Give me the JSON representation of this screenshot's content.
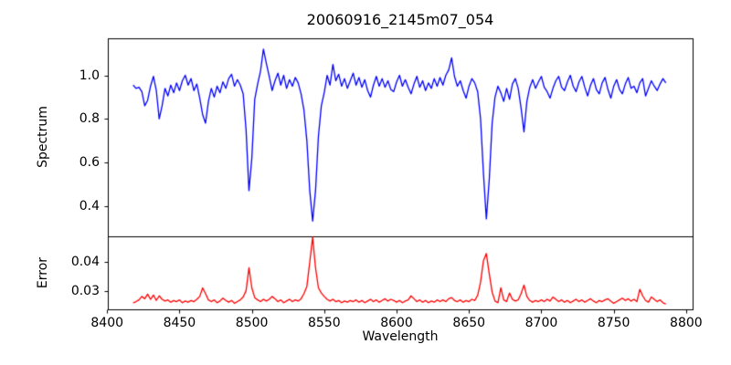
{
  "title": "20060916_2145m07_054",
  "xlabel": "Wavelength",
  "colors": {
    "background": "#ffffff",
    "axis": "#000000",
    "text": "#000000",
    "spectrum_line": "#0000ff",
    "error_line": "#ff0000"
  },
  "chart_data": {
    "type": "line",
    "title": "20060916_2145m07_054",
    "xlabel": "Wavelength",
    "grid": false,
    "legend": null,
    "xlim": [
      8400.5,
      8804.5
    ],
    "xticks": [
      "8400",
      "8450",
      "8500",
      "8550",
      "8600",
      "8650",
      "8700",
      "8750",
      "8800"
    ],
    "x": [
      8418,
      8420,
      8422,
      8424,
      8426,
      8428,
      8430,
      8432,
      8434,
      8436,
      8438,
      8440,
      8442,
      8444,
      8446,
      8448,
      8450,
      8452,
      8454,
      8456,
      8458,
      8460,
      8462,
      8464,
      8466,
      8468,
      8470,
      8472,
      8474,
      8476,
      8478,
      8480,
      8482,
      8484,
      8486,
      8488,
      8490,
      8492,
      8494,
      8496,
      8498,
      8500,
      8502,
      8504,
      8506,
      8508,
      8510,
      8512,
      8514,
      8516,
      8518,
      8520,
      8522,
      8524,
      8526,
      8528,
      8530,
      8532,
      8534,
      8536,
      8538,
      8540,
      8542,
      8544,
      8546,
      8548,
      8550,
      8552,
      8554,
      8556,
      8558,
      8560,
      8562,
      8564,
      8566,
      8568,
      8570,
      8572,
      8574,
      8576,
      8578,
      8580,
      8582,
      8584,
      8586,
      8588,
      8590,
      8592,
      8594,
      8596,
      8598,
      8600,
      8602,
      8604,
      8606,
      8608,
      8610,
      8612,
      8614,
      8616,
      8618,
      8620,
      8622,
      8624,
      8626,
      8628,
      8630,
      8632,
      8634,
      8636,
      8638,
      8640,
      8642,
      8644,
      8646,
      8648,
      8650,
      8652,
      8654,
      8656,
      8658,
      8660,
      8662,
      8664,
      8666,
      8668,
      8670,
      8672,
      8674,
      8676,
      8678,
      8680,
      8682,
      8684,
      8686,
      8688,
      8690,
      8692,
      8694,
      8696,
      8698,
      8700,
      8702,
      8704,
      8706,
      8708,
      8710,
      8712,
      8714,
      8716,
      8718,
      8720,
      8722,
      8724,
      8726,
      8728,
      8730,
      8732,
      8734,
      8736,
      8738,
      8740,
      8742,
      8744,
      8746,
      8748,
      8750,
      8752,
      8754,
      8756,
      8758,
      8760,
      8762,
      8764,
      8766,
      8768,
      8770,
      8772,
      8774,
      8776,
      8778,
      8780,
      8782,
      8784,
      8786
    ],
    "panels": [
      {
        "name": "spectrum",
        "ylabel": "Spectrum",
        "ylim": [
          0.26,
          1.17
        ],
        "yticks": [
          "0.4",
          "0.6",
          "0.8",
          "1.0"
        ],
        "line_color": "#0000ff",
        "values": [
          0.955,
          0.94,
          0.945,
          0.925,
          0.86,
          0.885,
          0.95,
          0.995,
          0.93,
          0.8,
          0.86,
          0.94,
          0.905,
          0.955,
          0.92,
          0.965,
          0.93,
          0.975,
          1.0,
          0.955,
          0.985,
          0.93,
          0.96,
          0.895,
          0.82,
          0.78,
          0.88,
          0.94,
          0.9,
          0.95,
          0.92,
          0.97,
          0.94,
          0.985,
          1.005,
          0.95,
          0.98,
          0.955,
          0.915,
          0.75,
          0.47,
          0.62,
          0.89,
          0.96,
          1.02,
          1.12,
          1.055,
          0.995,
          0.93,
          0.975,
          1.01,
          0.955,
          1.0,
          0.94,
          0.98,
          0.95,
          0.99,
          0.965,
          0.915,
          0.84,
          0.7,
          0.47,
          0.33,
          0.47,
          0.72,
          0.86,
          0.92,
          1.0,
          0.955,
          1.05,
          0.975,
          1.005,
          0.95,
          0.985,
          0.94,
          0.975,
          1.01,
          0.955,
          0.99,
          0.945,
          0.98,
          0.93,
          0.9,
          0.955,
          0.995,
          0.95,
          0.985,
          0.945,
          0.975,
          0.935,
          0.925,
          0.97,
          1.0,
          0.95,
          0.98,
          0.945,
          0.915,
          0.96,
          0.995,
          0.945,
          0.975,
          0.93,
          0.965,
          0.94,
          0.985,
          0.95,
          0.99,
          0.955,
          1.0,
          1.025,
          1.08,
          0.995,
          0.95,
          0.975,
          0.93,
          0.895,
          0.95,
          0.985,
          0.965,
          0.925,
          0.8,
          0.55,
          0.34,
          0.52,
          0.78,
          0.9,
          0.95,
          0.92,
          0.88,
          0.94,
          0.89,
          0.96,
          0.985,
          0.94,
          0.85,
          0.74,
          0.88,
          0.945,
          0.98,
          0.94,
          0.97,
          0.995,
          0.945,
          0.925,
          0.895,
          0.94,
          0.975,
          0.995,
          0.945,
          0.93,
          0.97,
          1.0,
          0.95,
          0.925,
          0.97,
          0.995,
          0.945,
          0.905,
          0.955,
          0.985,
          0.935,
          0.915,
          0.965,
          0.99,
          0.935,
          0.895,
          0.95,
          0.98,
          0.935,
          0.915,
          0.96,
          0.99,
          0.94,
          0.95,
          0.92,
          0.965,
          0.985,
          0.905,
          0.94,
          0.975,
          0.95,
          0.93,
          0.96,
          0.985,
          0.965
        ]
      },
      {
        "name": "error",
        "ylabel": "Error",
        "ylim": [
          0.0235,
          0.049
        ],
        "yticks": [
          "0.03",
          "0.04"
        ],
        "line_color": "#ff0000",
        "values": [
          0.0258,
          0.0262,
          0.0268,
          0.028,
          0.0272,
          0.0288,
          0.027,
          0.0285,
          0.0266,
          0.0282,
          0.027,
          0.0264,
          0.0268,
          0.026,
          0.0266,
          0.0262,
          0.0268,
          0.0258,
          0.0264,
          0.026,
          0.0266,
          0.0262,
          0.027,
          0.028,
          0.031,
          0.029,
          0.0268,
          0.0262,
          0.0268,
          0.0258,
          0.0264,
          0.0274,
          0.0266,
          0.026,
          0.0266,
          0.0256,
          0.0262,
          0.0268,
          0.0278,
          0.03,
          0.038,
          0.031,
          0.0276,
          0.0268,
          0.0262,
          0.027,
          0.0264,
          0.027,
          0.028,
          0.0272,
          0.0262,
          0.0268,
          0.0258,
          0.0264,
          0.027,
          0.0262,
          0.0268,
          0.0264,
          0.0272,
          0.029,
          0.0315,
          0.04,
          0.0487,
          0.038,
          0.031,
          0.0292,
          0.028,
          0.027,
          0.0264,
          0.027,
          0.0262,
          0.0266,
          0.0258,
          0.0264,
          0.026,
          0.0266,
          0.0262,
          0.0268,
          0.026,
          0.0266,
          0.0258,
          0.0264,
          0.027,
          0.0262,
          0.0268,
          0.026,
          0.0266,
          0.0272,
          0.0264,
          0.027,
          0.0266,
          0.026,
          0.0266,
          0.0258,
          0.0264,
          0.0268,
          0.0282,
          0.0272,
          0.0262,
          0.0268,
          0.026,
          0.0266,
          0.0258,
          0.0264,
          0.026,
          0.0268,
          0.0262,
          0.0268,
          0.0262,
          0.0272,
          0.0276,
          0.0266,
          0.0262,
          0.0268,
          0.026,
          0.0266,
          0.0262,
          0.027,
          0.0266,
          0.0284,
          0.033,
          0.0405,
          0.043,
          0.036,
          0.0295,
          0.0264,
          0.0258,
          0.031,
          0.0268,
          0.0262,
          0.0292,
          0.027,
          0.0264,
          0.0268,
          0.029,
          0.032,
          0.028,
          0.0266,
          0.026,
          0.0266,
          0.0262,
          0.0268,
          0.0262,
          0.027,
          0.0264,
          0.0278,
          0.027,
          0.0262,
          0.0268,
          0.026,
          0.0266,
          0.0258,
          0.0264,
          0.027,
          0.0262,
          0.0268,
          0.026,
          0.0266,
          0.0272,
          0.0264,
          0.0258,
          0.0266,
          0.0262,
          0.0268,
          0.0272,
          0.0264,
          0.0256,
          0.0262,
          0.0268,
          0.0274,
          0.0266,
          0.0272,
          0.0264,
          0.027,
          0.0262,
          0.0305,
          0.0282,
          0.0266,
          0.026,
          0.0278,
          0.027,
          0.0262,
          0.0268,
          0.0258,
          0.0254
        ]
      }
    ]
  }
}
